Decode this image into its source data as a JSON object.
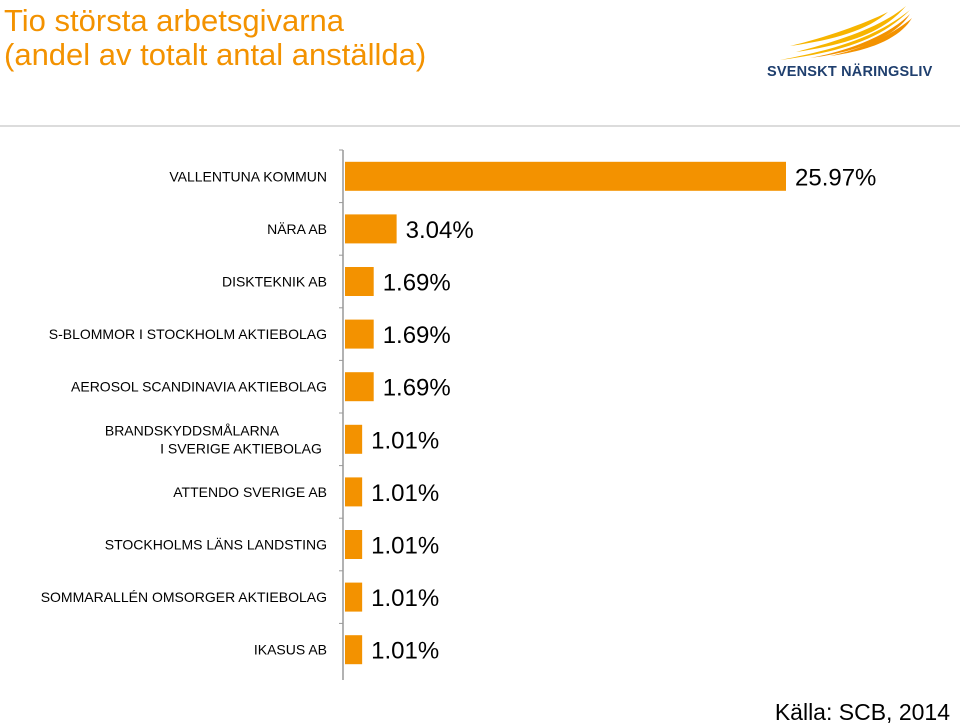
{
  "header": {
    "title_line1": "Tio största arbetsgivarna",
    "title_line2": "(andel av totalt antal anställda)"
  },
  "logo": {
    "text": "SVENSKT NÄRINGSLIV",
    "icon": "sunburst-logo-icon"
  },
  "colors": {
    "accent": "#f39200",
    "logo_blue": "#1f3f6e",
    "axis": "#999999"
  },
  "chart_data": {
    "type": "bar",
    "orientation": "horizontal",
    "categories": [
      "VALLENTUNA KOMMUN",
      "NÄRA AB",
      "DISKTEKNIK AB",
      "S-BLOMMOR I STOCKHOLM AKTIEBOLAG",
      "AEROSOL SCANDINAVIA AKTIEBOLAG",
      "BRANDSKYDDSMÅLARNA I SVERIGE AKTIEBOLAG",
      "ATTENDO SVERIGE AB",
      "STOCKHOLMS LÄNS LANDSTING",
      "SOMMARALLÉN OMSORGER AKTIEBOLAG",
      "IKASUS AB"
    ],
    "values": [
      25.97,
      3.04,
      1.69,
      1.69,
      1.69,
      1.01,
      1.01,
      1.01,
      1.01,
      1.01
    ],
    "data_labels": [
      "25.97%",
      "3.04%",
      "1.69%",
      "1.69%",
      "1.69%",
      "1.01%",
      "1.01%",
      "1.01%",
      "1.01%",
      "1.01%"
    ],
    "xlim": [
      0,
      26
    ],
    "grid": false,
    "legend": "none",
    "bar_color": "#f39200"
  },
  "source": "Källa: SCB, 2014"
}
